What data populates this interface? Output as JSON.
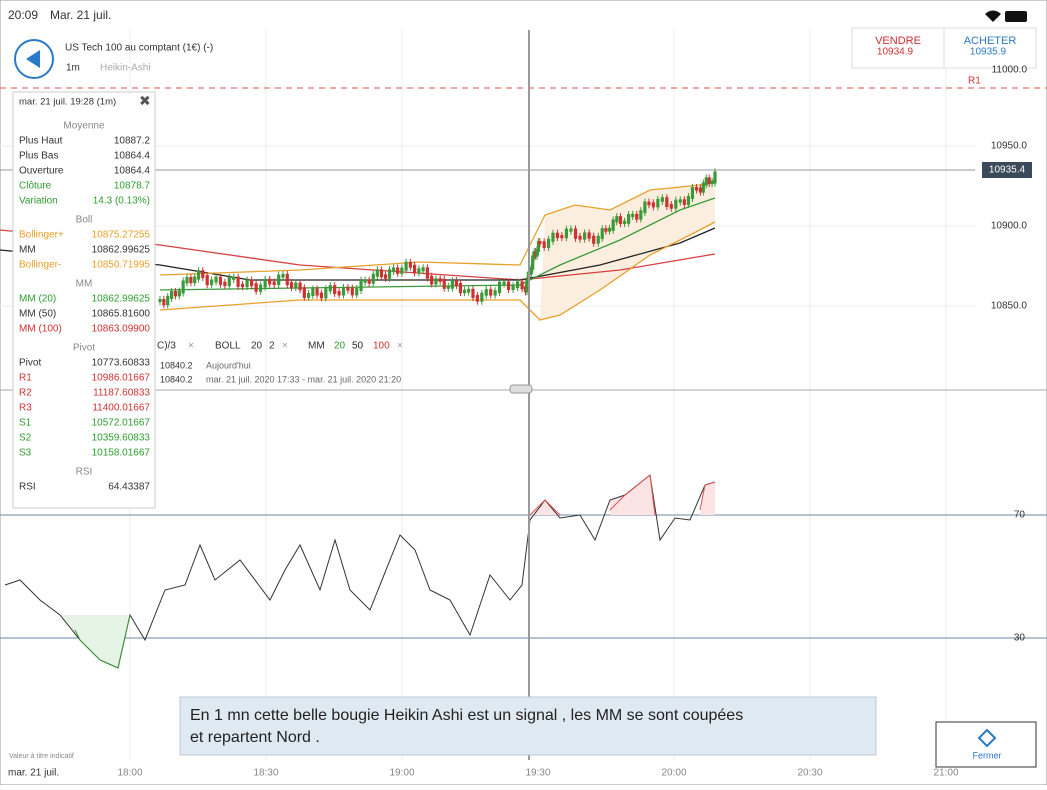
{
  "status_bar": {
    "time": "20:09",
    "date": "Mar. 21 juil."
  },
  "instrument": {
    "name": "US Tech 100 au comptant (1€) (-)",
    "interval": "1m",
    "chart_type": "Heikin-Ashi"
  },
  "sell": {
    "label": "VENDRE",
    "price": "10934.9"
  },
  "buy": {
    "label": "ACHETER",
    "price": "10935.9"
  },
  "price_axis": {
    "top": "11000.0",
    "ticks": [
      "10950.0",
      "10900.0",
      "10850.0"
    ],
    "current": "10935.4",
    "level": "R1"
  },
  "rsi_axis": {
    "ticks": [
      "70",
      "30"
    ]
  },
  "time_axis": {
    "date": "mar. 21 juil.",
    "ticks": [
      "18:00",
      "18:30",
      "19:00",
      "19:30",
      "20:00",
      "20:30",
      "21:00"
    ]
  },
  "tooltip": {
    "header": "mar. 21 juil. 19:28 (1m)",
    "sections": [
      {
        "title": "Moyenne",
        "rows": [
          [
            "Plus Haut",
            "10887.2"
          ],
          [
            "Plus Bas",
            "10864.4"
          ],
          [
            "Ouverture",
            "10864.4"
          ],
          [
            "Clôture",
            "10878.7"
          ],
          [
            "Variation",
            "14.3 (0.13%)"
          ]
        ]
      },
      {
        "title": "Boll",
        "rows": [
          [
            "Bollinger+",
            "10875.27255"
          ],
          [
            "MM",
            "10862.99625"
          ],
          [
            "Bollinger-",
            "10850.71995"
          ]
        ]
      },
      {
        "title": "MM",
        "rows": [
          [
            "MM (20)",
            "10862.99625"
          ],
          [
            "MM (50)",
            "10865.81600"
          ],
          [
            "MM (100)",
            "10863.09900"
          ]
        ]
      },
      {
        "title": "Pivot",
        "rows": [
          [
            "Pivot",
            "10773.60833"
          ],
          [
            "R1",
            "10986.01667"
          ],
          [
            "R2",
            "11187.60833"
          ],
          [
            "R3",
            "11400.01667"
          ],
          [
            "S1",
            "10572.01667"
          ],
          [
            "S2",
            "10359.60833"
          ],
          [
            "S3",
            "10158.01667"
          ]
        ]
      },
      {
        "title": "RSI",
        "rows": [
          [
            "RSI",
            "64.43387"
          ]
        ]
      }
    ]
  },
  "indicator_bar": {
    "typical": "C)/3",
    "boll": "BOLL",
    "boll_period": "20",
    "boll_dev": "2",
    "mm": "MM",
    "mm_periods": [
      "20",
      "50",
      "100"
    ]
  },
  "info_rows": [
    [
      "10840.2",
      "Aujourd'hui"
    ],
    [
      "10840.2",
      "mar. 21 juil. 2020 17:33 - mar. 21 juil. 2020 21:20"
    ]
  ],
  "disclaimer": "Valeur à titre indicatif",
  "close_button": "Fermer",
  "caption": [
    "En 1 mn cette belle bougie Heikin Ashi est un signal , les MM se sont coupées",
    "et repartent Nord ."
  ]
}
